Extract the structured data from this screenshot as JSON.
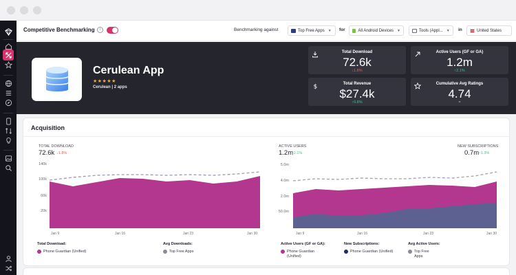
{
  "topbar": {
    "title": "Competitive Benchmarking",
    "info_icon": "info-icon",
    "toggle_on": true,
    "benchmark_label": "Benchmarking against",
    "benchmark_value": "Top Free Apps",
    "for_label": "for",
    "device_value": "All Android Devices",
    "category_value": "Tools (Appl...",
    "in_label": "in",
    "country_value": "United States"
  },
  "sidebar": {
    "icons": [
      "logo-icon",
      "home-icon",
      "benchmark-icon",
      "star-icon",
      "globe-icon",
      "list-icon",
      "compass-icon",
      "mobile-icon",
      "transfer-icon",
      "lightbulb-icon",
      "image-icon",
      "search-icon",
      "user-icon",
      "shuffle-icon"
    ]
  },
  "app": {
    "name": "Cerulean App",
    "stars": "★★★★★",
    "subtitle": "Cerulean | 2 apps"
  },
  "kpis": [
    {
      "label": "Total Download",
      "value": "72.6k",
      "change": "↓1.8%",
      "trend": "down",
      "icon": "download-icon"
    },
    {
      "label": "Active Users (GF or GA)",
      "value": "1.2m",
      "change": "↑2.1%",
      "trend": "up",
      "icon": "trend-up-icon"
    },
    {
      "label": "Total Revenue",
      "value": "$27.4k",
      "change": "↑0.8%",
      "trend": "up",
      "icon": "dollar-icon"
    },
    {
      "label": "Cumulative Avg Ratings",
      "value": "4.74",
      "change": "=",
      "trend": "neutral",
      "icon": "star-outline-icon"
    }
  ],
  "acquisition": {
    "title": "Acquisition",
    "left": {
      "metric_label": "TOTAL DOWNLOAD",
      "metric_value": "72.6k",
      "metric_change": "↓1.8%",
      "y_ticks": [
        "140k",
        "100k",
        "60k",
        "20k"
      ],
      "x_ticks": [
        "Jan 9",
        "Jan 16",
        "Jan 23",
        "Jan 30"
      ],
      "legend": [
        {
          "title": "Total Download:",
          "item": "Phone Guardian (Unified)",
          "color": "#b3378f"
        },
        {
          "title": "Avg Downloads:",
          "item": "Top Free Apps",
          "color": "#8a8a9a"
        }
      ]
    },
    "right": {
      "metric_label": "ACTIVE USERS",
      "metric_value": "1.2m",
      "metric_change": "↑2.1%",
      "metric2_label": "NEW SUBSCRIPTIONS",
      "metric2_value": "0.7m",
      "metric2_change": "↑1.3%",
      "y_ticks": [
        "5.0m",
        "4.0m",
        "2.0m",
        "50.0m"
      ],
      "x_ticks": [
        "Jan 9",
        "Jan 16",
        "Jan 23",
        "Jan 30"
      ],
      "legend": [
        {
          "title": "Active Users (GF or GA):",
          "item": "Phone Guardian (Unified)",
          "color": "#b3378f"
        },
        {
          "title": "New Subscriptions:",
          "item": "Phone Guardian (Unified)",
          "color": "#232a66"
        },
        {
          "title": "Avg Active Users:",
          "item": "Top Free Apps",
          "color": "#8a8a9a"
        }
      ]
    }
  },
  "colors": {
    "accent": "#d6336c",
    "magenta": "#b3378f",
    "navy": "#5d6192",
    "dark_panel": "#25252e"
  }
}
